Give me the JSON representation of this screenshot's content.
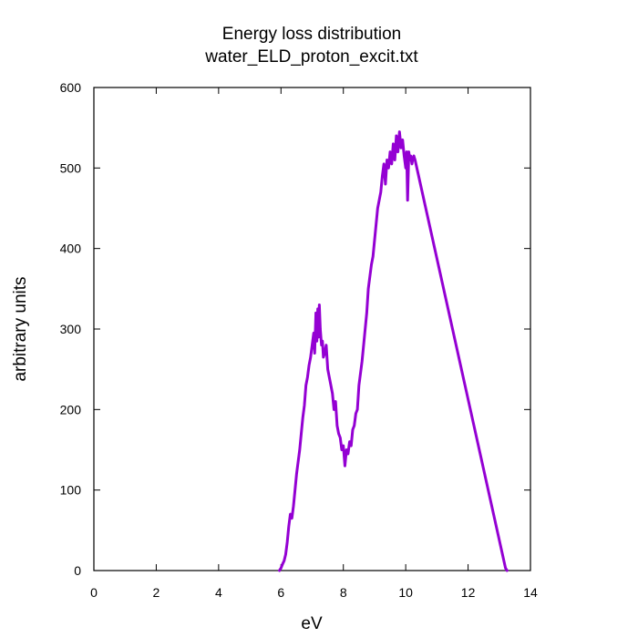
{
  "chart_data": {
    "type": "line",
    "title": "Energy loss distribution",
    "subtitle": "water_ELD_proton_excit.txt",
    "xlabel": "eV",
    "ylabel": "arbitrary units",
    "xlim": [
      0,
      14
    ],
    "ylim": [
      0,
      600
    ],
    "xticks": [
      "0",
      "2",
      "4",
      "6",
      "8",
      "10",
      "12",
      "14"
    ],
    "yticks": [
      "0",
      "100",
      "200",
      "300",
      "400",
      "500",
      "600"
    ],
    "grid": false,
    "legend": "none",
    "colors": {
      "series": "#9400d3",
      "axes": "#000000",
      "background": "#ffffff"
    },
    "series": [
      {
        "x": [
          5.95,
          6.0,
          6.05,
          6.1,
          6.15,
          6.2,
          6.25,
          6.3,
          6.35,
          6.4,
          6.45,
          6.5,
          6.55,
          6.6,
          6.65,
          6.7,
          6.75,
          6.8,
          6.85,
          6.9,
          6.95,
          7.0,
          7.05,
          7.08,
          7.12,
          7.15,
          7.18,
          7.2,
          7.23,
          7.26,
          7.3,
          7.33,
          7.36,
          7.4,
          7.45,
          7.5,
          7.55,
          7.6,
          7.65,
          7.7,
          7.75,
          7.8,
          7.85,
          7.9,
          7.95,
          8.0,
          8.05,
          8.1,
          8.15,
          8.2,
          8.25,
          8.3,
          8.35,
          8.4,
          8.45,
          8.5,
          8.55,
          8.6,
          8.65,
          8.7,
          8.75,
          8.8,
          8.85,
          8.9,
          8.95,
          9.0,
          9.05,
          9.1,
          9.15,
          9.2,
          9.25,
          9.3,
          9.35,
          9.4,
          9.45,
          9.5,
          9.55,
          9.6,
          9.65,
          9.7,
          9.75,
          9.8,
          9.85,
          9.9,
          9.95,
          10.0,
          10.03,
          10.06,
          10.1,
          10.13,
          10.16,
          10.2,
          10.23,
          10.26,
          10.3,
          13.2,
          13.25
        ],
        "y": [
          0,
          3,
          8,
          12,
          20,
          35,
          55,
          70,
          65,
          80,
          100,
          120,
          135,
          150,
          170,
          190,
          205,
          230,
          240,
          255,
          265,
          280,
          295,
          270,
          320,
          285,
          325,
          290,
          330,
          300,
          280,
          285,
          265,
          270,
          280,
          250,
          240,
          230,
          220,
          200,
          210,
          180,
          170,
          165,
          150,
          155,
          130,
          150,
          145,
          160,
          155,
          175,
          180,
          195,
          200,
          230,
          245,
          260,
          280,
          300,
          320,
          350,
          365,
          380,
          390,
          410,
          430,
          450,
          460,
          470,
          490,
          505,
          480,
          510,
          500,
          520,
          505,
          530,
          510,
          540,
          520,
          545,
          525,
          535,
          515,
          500,
          520,
          460,
          520,
          510,
          515,
          505,
          512,
          515,
          510,
          3,
          0
        ]
      }
    ]
  }
}
